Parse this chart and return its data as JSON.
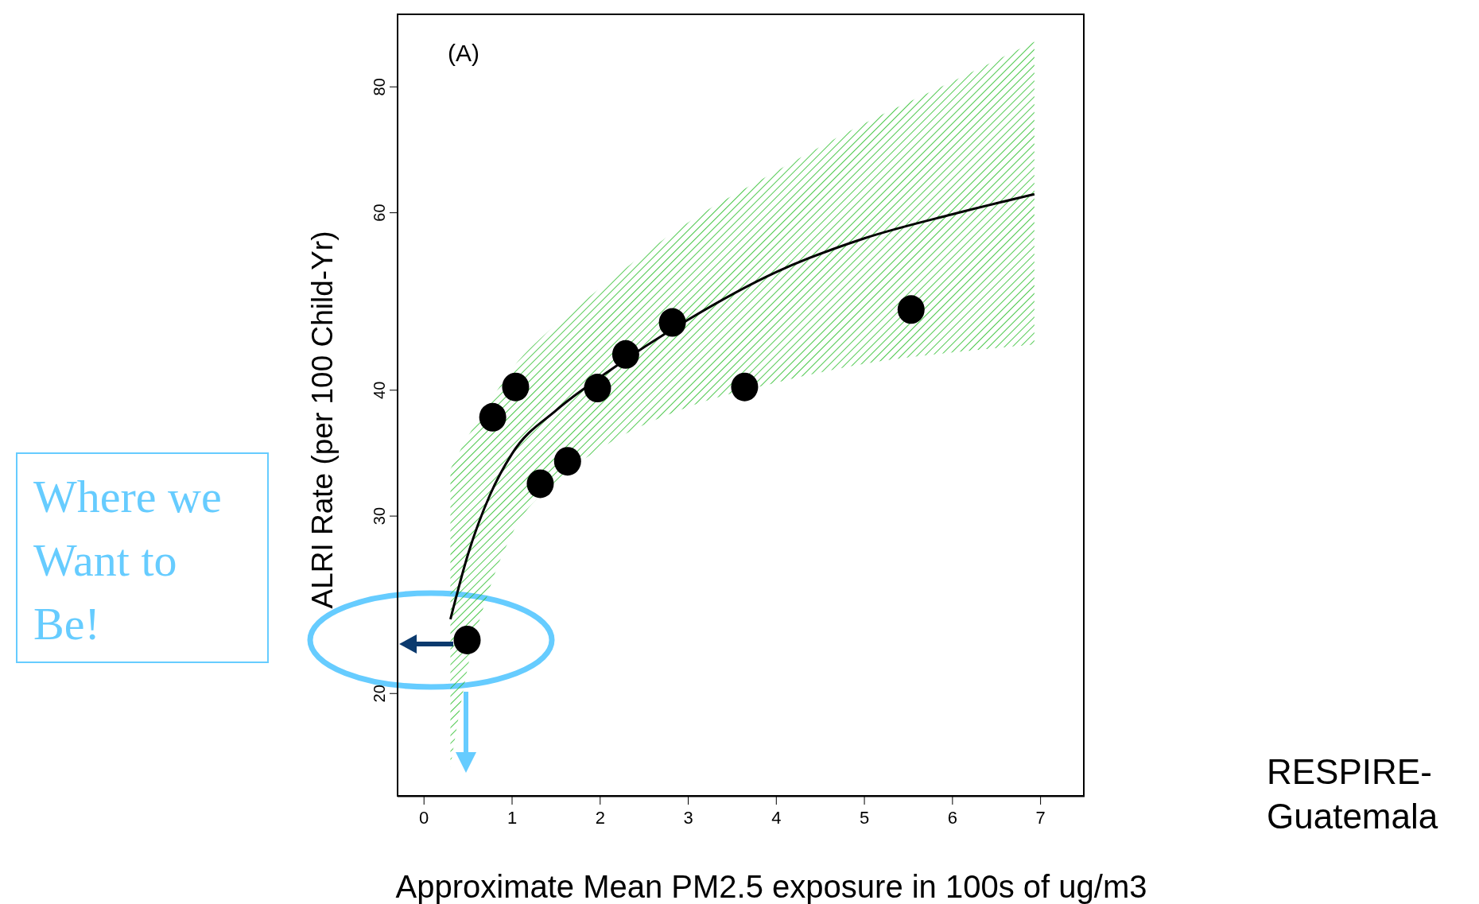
{
  "chart_data": {
    "type": "scatter",
    "xlabel": "Approximate Mean PM2.5 exposure in 100s of ug/m3",
    "ylabel": "ALRI Rate (per 100 Child-Yr)",
    "log": "y",
    "xlim": [
      -0.3,
      7.5
    ],
    "ylim": [
      15.8,
      94.6
    ],
    "xticks": [
      0,
      1,
      2,
      3,
      4,
      5,
      6,
      7
    ],
    "yticks": [
      20,
      30,
      40,
      60,
      80
    ],
    "line_style": "solid",
    "series": [
      {
        "type": "line",
        "color": "#000000",
        "x": [
          0.3,
          0.5,
          0.75,
          1,
          1.5,
          2,
          3,
          4,
          5,
          6,
          6.93
        ],
        "values": [
          23.7,
          27.5,
          31.5,
          34.6,
          38.2,
          41.2,
          47,
          52.4,
          56.6,
          59.8,
          62.6
        ],
        "lower": [
          16.9,
          21.3,
          25.5,
          28.8,
          32.5,
          35,
          38.5,
          40.7,
          42.5,
          43.6,
          44.4
        ],
        "upper": [
          33.4,
          36,
          39,
          42,
          46.5,
          50.5,
          58.7,
          66,
          73.6,
          81,
          88.7
        ]
      },
      {
        "color": "#000000",
        "marker": "circle",
        "x": [
          0.49,
          0.78,
          1.04,
          1.32,
          1.63,
          1.97,
          2.29,
          2.82,
          3.64,
          5.53
        ],
        "values": [
          22.6,
          37.6,
          40.3,
          32.3,
          34,
          40.2,
          43.4,
          46.7,
          40.3,
          48.1
        ]
      }
    ],
    "annotations": [
      "(A)",
      "RESPIRE-\nGuatemala",
      "Where we Want to Be!"
    ]
  }
}
